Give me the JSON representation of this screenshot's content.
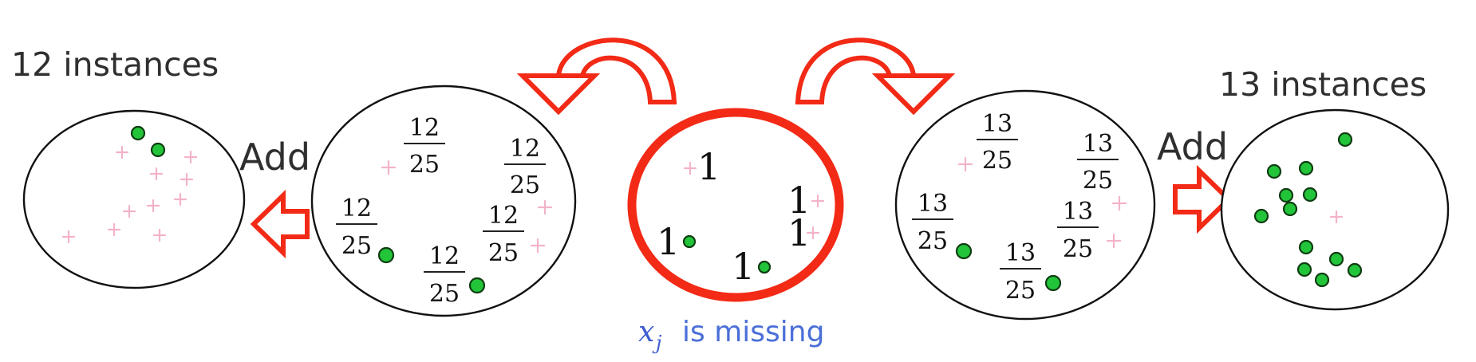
{
  "labels": {
    "left_count": "12 instances",
    "right_count": "13 instances",
    "add_left": "Add",
    "add_right": "Add",
    "caption_var": "x",
    "caption_sub": "j",
    "caption_text": "is missing"
  },
  "weights": {
    "left_num": "12",
    "left_den": "25",
    "right_num": "13",
    "right_den": "25",
    "center": "1"
  },
  "colors": {
    "positive_marker": "#f3b3c9",
    "negative_marker": "#22c53a",
    "highlight": "#f22a16",
    "caption": "#4a6fd8"
  },
  "icons": [
    "curved-arrow-left-icon",
    "curved-arrow-right-icon",
    "block-arrow-left-icon",
    "block-arrow-right-icon"
  ]
}
